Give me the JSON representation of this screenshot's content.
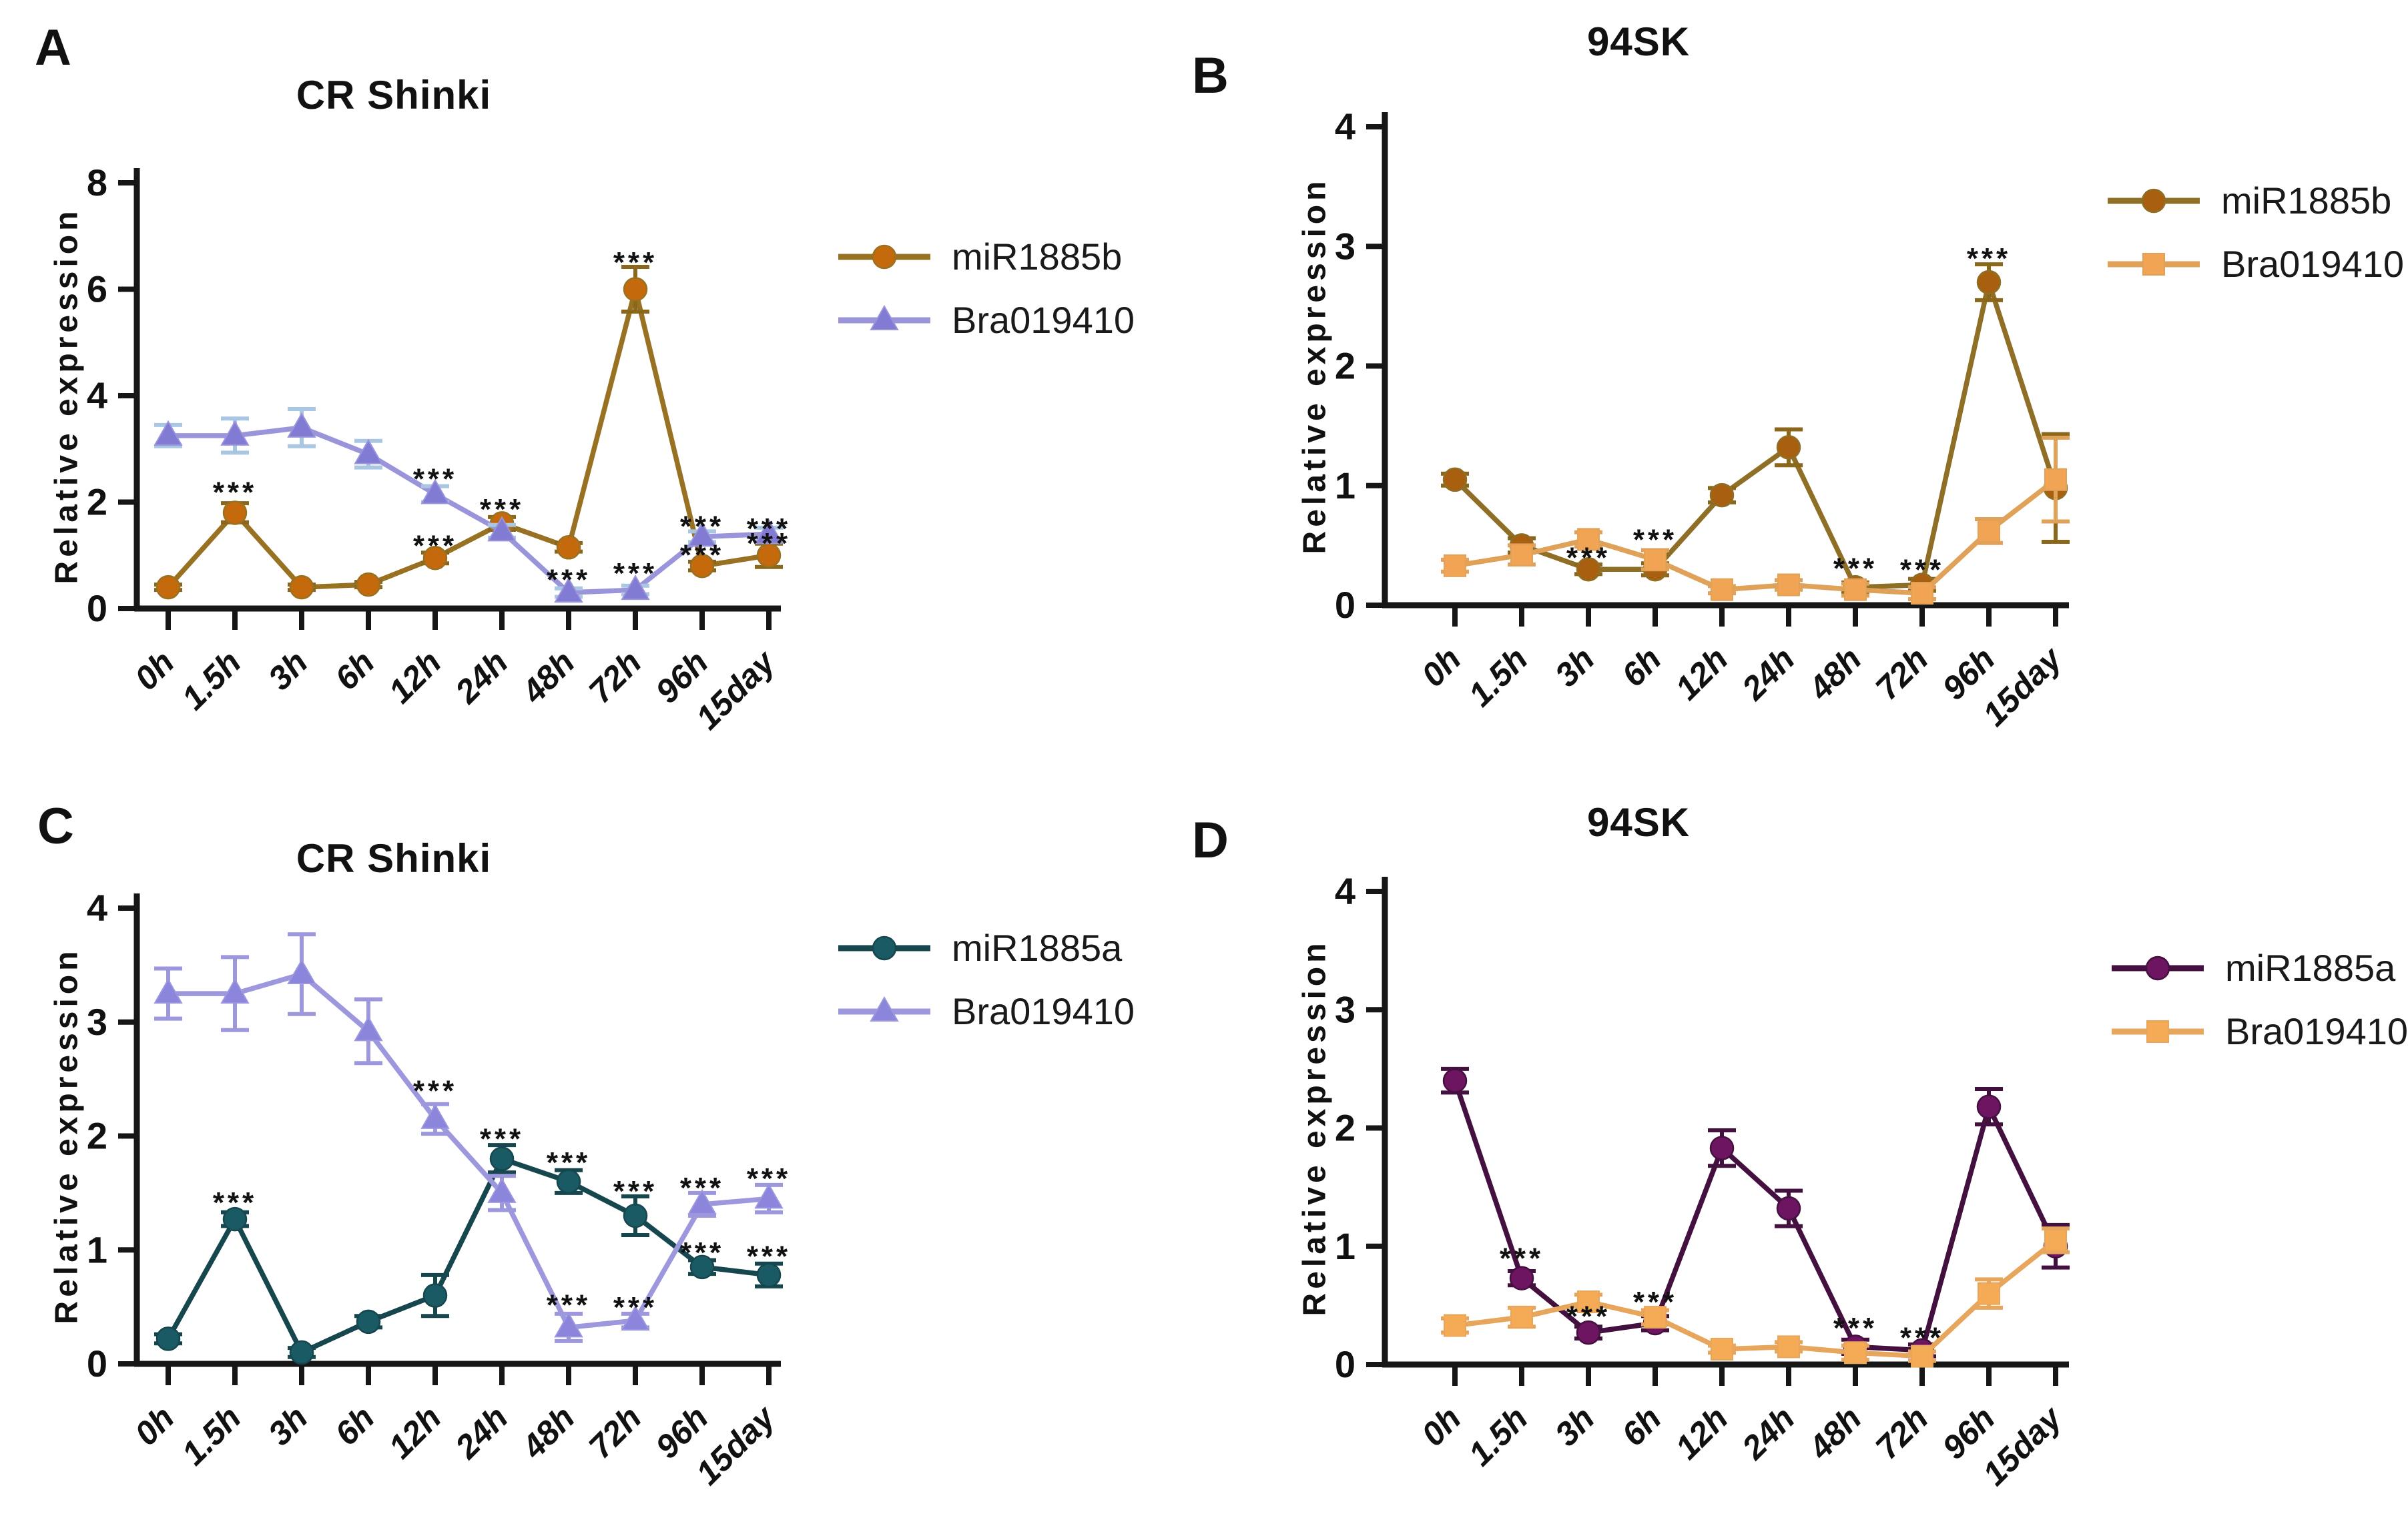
{
  "figure": {
    "description": "Four-panel line chart figure of relative expression time courses",
    "x_categories": [
      "0h",
      "1.5h",
      "3h",
      "6h",
      "12h",
      "24h",
      "48h",
      "72h",
      "96h",
      "15day"
    ],
    "significance_symbol": "***"
  },
  "chart_data": [
    {
      "type": "line",
      "panel_label": "A",
      "title": "CR Shinki",
      "ylabel": "Relative expression",
      "xlabel": "",
      "categories": [
        "0h",
        "1.5h",
        "3h",
        "6h",
        "12h",
        "24h",
        "48h",
        "72h",
        "96h",
        "15day"
      ],
      "ylim": [
        0,
        8
      ],
      "yticks": [
        0,
        2,
        4,
        6,
        8
      ],
      "grid": false,
      "legend_position": "right",
      "series": [
        {
          "name": "miR1885b",
          "marker": "circle",
          "color": "#c4690c",
          "line_color": "#997122",
          "err_color": "#8a671a",
          "values": [
            0.4,
            1.8,
            0.4,
            0.45,
            0.95,
            1.6,
            1.15,
            6.0,
            0.8,
            1.0
          ],
          "errors": [
            0.05,
            0.18,
            0.05,
            0.05,
            0.1,
            0.12,
            0.08,
            0.42,
            0.08,
            0.22
          ]
        },
        {
          "name": "Bra019410",
          "marker": "triangle",
          "color": "#827bd4",
          "line_color": "#9a95da",
          "err_color": "#a9c7e2",
          "values": [
            3.25,
            3.25,
            3.4,
            2.9,
            2.15,
            1.45,
            0.3,
            0.35,
            1.35,
            1.4
          ],
          "errors": [
            0.2,
            0.32,
            0.35,
            0.25,
            0.15,
            0.12,
            0.08,
            0.08,
            0.1,
            0.12
          ]
        }
      ],
      "significance": [
        {
          "x": 1,
          "y": 2.3,
          "text": "***"
        },
        {
          "x": 4,
          "y": 2.55,
          "text": "***"
        },
        {
          "x": 4,
          "y": 1.3,
          "text": "***"
        },
        {
          "x": 5,
          "y": 1.98,
          "text": "***"
        },
        {
          "x": 6,
          "y": 0.66,
          "text": "***"
        },
        {
          "x": 7,
          "y": 6.62,
          "text": "***"
        },
        {
          "x": 7,
          "y": 0.78,
          "text": "***"
        },
        {
          "x": 8,
          "y": 1.66,
          "text": "***"
        },
        {
          "x": 8,
          "y": 1.12,
          "text": "***"
        },
        {
          "x": 9,
          "y": 1.62,
          "text": "***"
        },
        {
          "x": 9,
          "y": 1.34,
          "text": "***"
        }
      ]
    },
    {
      "type": "line",
      "panel_label": "B",
      "title": "94SK",
      "ylabel": "Relative expression",
      "xlabel": "",
      "categories": [
        "0h",
        "1.5h",
        "3h",
        "6h",
        "12h",
        "24h",
        "48h",
        "72h",
        "96h",
        "15day"
      ],
      "ylim": [
        0,
        4
      ],
      "yticks": [
        0,
        1,
        2,
        3,
        4
      ],
      "grid": false,
      "legend_position": "right",
      "series": [
        {
          "name": "miR1885b",
          "marker": "circle",
          "color": "#a85f10",
          "line_color": "#8f6e26",
          "err_color": "#8a671a",
          "values": [
            1.05,
            0.5,
            0.3,
            0.3,
            0.92,
            1.32,
            0.15,
            0.17,
            2.7,
            0.98
          ],
          "errors": [
            0.05,
            0.06,
            0.04,
            0.05,
            0.06,
            0.15,
            0.04,
            0.05,
            0.15,
            0.45
          ]
        },
        {
          "name": "Bra019410",
          "marker": "square",
          "color": "#f2a455",
          "line_color": "#e0a158",
          "err_color": "#e0a158",
          "values": [
            0.33,
            0.42,
            0.55,
            0.38,
            0.13,
            0.17,
            0.13,
            0.1,
            0.62,
            1.05
          ],
          "errors": [
            0.05,
            0.08,
            0.06,
            0.08,
            0.03,
            0.04,
            0.05,
            0.05,
            0.1,
            0.35
          ]
        }
      ],
      "significance": [
        {
          "x": 2,
          "y": 0.45,
          "text": "***"
        },
        {
          "x": 3,
          "y": 0.6,
          "text": "***"
        },
        {
          "x": 6,
          "y": 0.36,
          "text": "***"
        },
        {
          "x": 7,
          "y": 0.35,
          "text": "***"
        },
        {
          "x": 8,
          "y": 2.95,
          "text": "***"
        }
      ]
    },
    {
      "type": "line",
      "panel_label": "C",
      "title": "CR Shinki",
      "ylabel": "Relative expression",
      "xlabel": "",
      "categories": [
        "0h",
        "1.5h",
        "3h",
        "6h",
        "12h",
        "24h",
        "48h",
        "72h",
        "96h",
        "15day"
      ],
      "ylim": [
        0,
        4
      ],
      "yticks": [
        0,
        1,
        2,
        3,
        4
      ],
      "grid": false,
      "legend_position": "right",
      "series": [
        {
          "name": "miR1885a",
          "marker": "circle",
          "color": "#1a5a64",
          "line_color": "#17474e",
          "err_color": "#17474e",
          "values": [
            0.22,
            1.27,
            0.1,
            0.37,
            0.6,
            1.8,
            1.6,
            1.3,
            0.85,
            0.78
          ],
          "errors": [
            0.04,
            0.06,
            0.04,
            0.05,
            0.18,
            0.12,
            0.1,
            0.17,
            0.06,
            0.1
          ]
        },
        {
          "name": "Bra019410",
          "marker": "triangle",
          "color": "#8b85dc",
          "line_color": "#9d98de",
          "err_color": "#9d98de",
          "values": [
            3.25,
            3.25,
            3.42,
            2.92,
            2.15,
            1.5,
            0.32,
            0.38,
            1.4,
            1.45
          ],
          "errors": [
            0.22,
            0.32,
            0.35,
            0.28,
            0.13,
            0.15,
            0.12,
            0.06,
            0.1,
            0.12
          ]
        }
      ],
      "significance": [
        {
          "x": 1,
          "y": 1.47,
          "text": "***"
        },
        {
          "x": 4,
          "y": 2.45,
          "text": "***"
        },
        {
          "x": 5,
          "y": 2.03,
          "text": "***"
        },
        {
          "x": 6,
          "y": 1.82,
          "text": "***"
        },
        {
          "x": 6,
          "y": 0.57,
          "text": "***"
        },
        {
          "x": 7,
          "y": 1.57,
          "text": "***"
        },
        {
          "x": 7,
          "y": 0.55,
          "text": "***"
        },
        {
          "x": 8,
          "y": 1.6,
          "text": "***"
        },
        {
          "x": 8,
          "y": 1.03,
          "text": "***"
        },
        {
          "x": 9,
          "y": 1.68,
          "text": "***"
        },
        {
          "x": 9,
          "y": 1.0,
          "text": "***"
        }
      ]
    },
    {
      "type": "line",
      "panel_label": "D",
      "title": "94SK",
      "ylabel": "Relative expression",
      "xlabel": "",
      "categories": [
        "0h",
        "1.5h",
        "3h",
        "6h",
        "12h",
        "24h",
        "48h",
        "72h",
        "96h",
        "15day"
      ],
      "ylim": [
        0,
        4
      ],
      "yticks": [
        0,
        1,
        2,
        3,
        4
      ],
      "grid": false,
      "legend_position": "right",
      "series": [
        {
          "name": "miR1885a",
          "marker": "circle",
          "color": "#6e1562",
          "line_color": "#43103f",
          "err_color": "#43103f",
          "values": [
            2.4,
            0.73,
            0.27,
            0.35,
            1.83,
            1.32,
            0.15,
            0.12,
            2.18,
            1.0
          ],
          "errors": [
            0.1,
            0.06,
            0.05,
            0.06,
            0.15,
            0.15,
            0.06,
            0.05,
            0.15,
            0.18
          ]
        },
        {
          "name": "Bra019410",
          "marker": "square",
          "color": "#f5ab56",
          "line_color": "#e7a65c",
          "err_color": "#e7a65c",
          "values": [
            0.33,
            0.4,
            0.53,
            0.4,
            0.13,
            0.15,
            0.1,
            0.07,
            0.6,
            1.05
          ],
          "errors": [
            0.06,
            0.08,
            0.06,
            0.06,
            0.03,
            0.04,
            0.06,
            0.04,
            0.12,
            0.1
          ]
        }
      ],
      "significance": [
        {
          "x": 1,
          "y": 0.95,
          "text": "***"
        },
        {
          "x": 2,
          "y": 0.46,
          "text": "***"
        },
        {
          "x": 3,
          "y": 0.58,
          "text": "***"
        },
        {
          "x": 6,
          "y": 0.36,
          "text": "***"
        },
        {
          "x": 7,
          "y": 0.28,
          "text": "***"
        }
      ]
    }
  ]
}
